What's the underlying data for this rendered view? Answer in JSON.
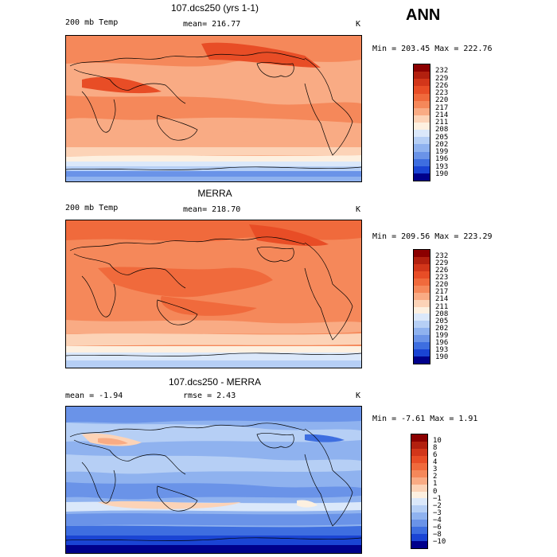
{
  "season": "ANN",
  "panels": [
    {
      "title": "107.dcs250 (yrs 1-1)",
      "left_label": "200 mb Temp",
      "center_label": "mean= 216.77",
      "extra_label": "",
      "unit": "K",
      "minmax": "Min = 203.45 Max = 222.76"
    },
    {
      "title": "MERRA",
      "left_label": "200 mb Temp",
      "center_label": "mean= 218.70",
      "extra_label": "",
      "unit": "K",
      "minmax": "Min = 209.56 Max = 223.29"
    },
    {
      "title": "107.dcs250 - MERRA",
      "left_label": "mean =   -1.94",
      "center_label": "rmse =   2.43",
      "extra_label": "",
      "unit": "K",
      "minmax": "Min =  -7.61 Max =   1.91"
    }
  ],
  "chart_data": [
    {
      "type": "heatmap",
      "title": "107.dcs250 (yrs 1-1)",
      "variable": "200 mb Temp",
      "units": "K",
      "mean": 216.77,
      "min": 203.45,
      "max": 222.76,
      "colorbar_levels": [
        "232",
        "229",
        "226",
        "223",
        "220",
        "217",
        "214",
        "211",
        "208",
        "205",
        "202",
        "199",
        "196",
        "193",
        "190"
      ],
      "colorbar_colors": [
        "#8b0000",
        "#b2200f",
        "#d2361a",
        "#e84d26",
        "#f06a3c",
        "#f5885a",
        "#f9ab84",
        "#fcd3b7",
        "#fdf0e0",
        "#dbe8fa",
        "#b6cff5",
        "#8fb2ef",
        "#6a93e8",
        "#3e6ee0",
        "#1a44d4",
        "#00008b"
      ]
    },
    {
      "type": "heatmap",
      "title": "MERRA",
      "variable": "200 mb Temp",
      "units": "K",
      "mean": 218.7,
      "min": 209.56,
      "max": 223.29,
      "colorbar_levels": [
        "232",
        "229",
        "226",
        "223",
        "220",
        "217",
        "214",
        "211",
        "208",
        "205",
        "202",
        "199",
        "196",
        "193",
        "190"
      ],
      "colorbar_colors": [
        "#8b0000",
        "#b2200f",
        "#d2361a",
        "#e84d26",
        "#f06a3c",
        "#f5885a",
        "#f9ab84",
        "#fcd3b7",
        "#fdf0e0",
        "#dbe8fa",
        "#b6cff5",
        "#8fb2ef",
        "#6a93e8",
        "#3e6ee0",
        "#1a44d4",
        "#00008b"
      ]
    },
    {
      "type": "heatmap",
      "title": "107.dcs250 - MERRA",
      "units": "K",
      "mean": -1.94,
      "rmse": 2.43,
      "min": -7.61,
      "max": 1.91,
      "colorbar_levels": [
        "10",
        "8",
        "6",
        "4",
        "3",
        "2",
        "1",
        "0",
        "−1",
        "−2",
        "−3",
        "−4",
        "−6",
        "−8",
        "−10"
      ],
      "colorbar_colors": [
        "#8b0000",
        "#b2200f",
        "#d2361a",
        "#e84d26",
        "#f06a3c",
        "#f5885a",
        "#f9ab84",
        "#fcd3b7",
        "#fdf0e0",
        "#dbe8fa",
        "#b6cff5",
        "#8fb2ef",
        "#6a93e8",
        "#3e6ee0",
        "#1a44d4",
        "#00008b"
      ]
    }
  ]
}
